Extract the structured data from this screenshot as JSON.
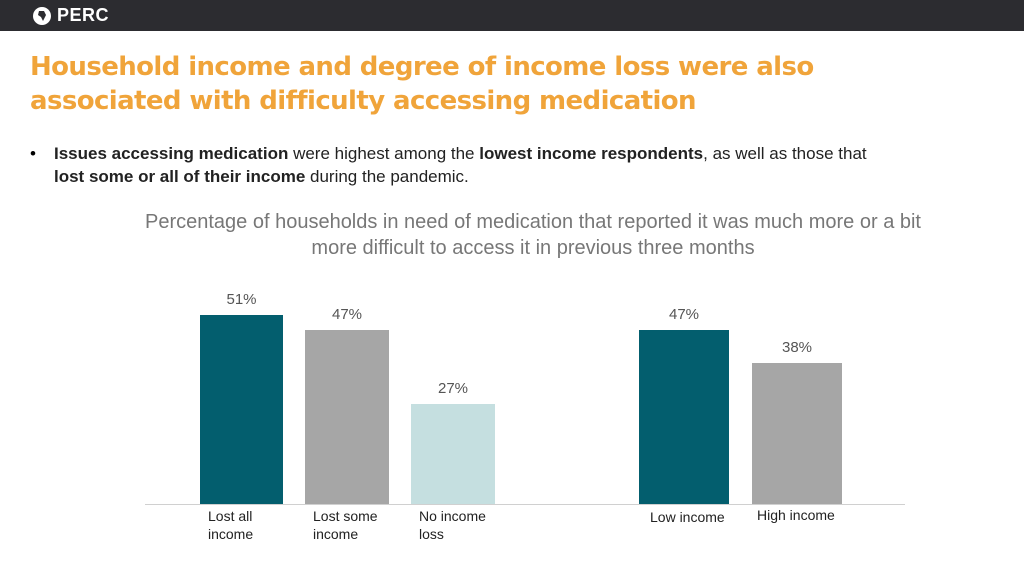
{
  "header": {
    "logo": "PERC"
  },
  "title": "Household income and degree of income loss were also associated with difficulty accessing medication",
  "bullet": [
    {
      "text": "Issues accessing medication",
      "bold": true
    },
    {
      "text": " were highest among the ",
      "bold": false
    },
    {
      "text": "lowest income respondents",
      "bold": true
    },
    {
      "text": ", as well as those that ",
      "bold": false
    },
    {
      "text": "lost some or all of their income",
      "bold": true
    },
    {
      "text": " during the pandemic.",
      "bold": false
    }
  ],
  "chart_data": {
    "type": "bar",
    "title": "Percentage of households in need of medication that reported it was much more or a bit more difficult to access it in previous three months",
    "panels": [
      {
        "categories": [
          "Lost all income",
          "Lost some income",
          "No income loss"
        ],
        "values": [
          51,
          47,
          27
        ],
        "value_labels": [
          "51%",
          "47%",
          "27%"
        ],
        "colors": [
          "#035e6e",
          "#a6a6a6",
          "#c5dfe0"
        ]
      },
      {
        "categories": [
          "Low income",
          "High income"
        ],
        "values": [
          47,
          38
        ],
        "value_labels": [
          "47%",
          "38%"
        ],
        "colors": [
          "#035e6e",
          "#a6a6a6"
        ]
      }
    ]
  }
}
